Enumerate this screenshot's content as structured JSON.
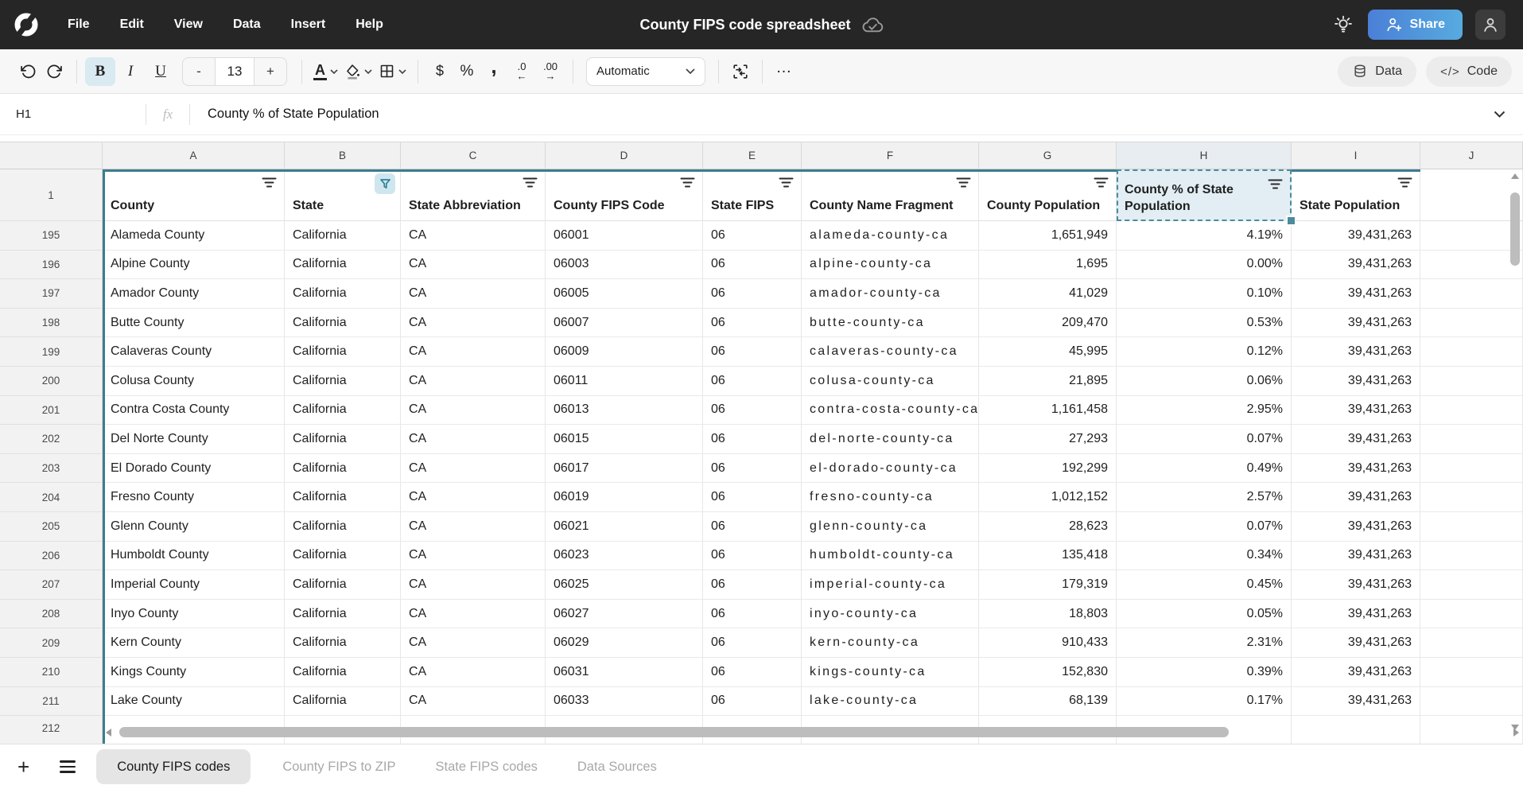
{
  "topbar": {
    "menus": [
      "File",
      "Edit",
      "View",
      "Data",
      "Insert",
      "Help"
    ],
    "title": "County FIPS code spreadsheet",
    "share_label": "Share"
  },
  "toolbar": {
    "bold": "B",
    "italic": "I",
    "underline": "U",
    "font_size_decrease": "-",
    "font_size": "13",
    "font_size_increase": "+",
    "text_color_glyph": "A",
    "currency": "$",
    "percent": "%",
    "comma": ",",
    "decrease_decimal": ".0",
    "decrease_decimal_arrow": "←",
    "increase_decimal": ".00",
    "increase_decimal_arrow": "→",
    "format_select_value": "Automatic",
    "more": "…",
    "data_label": "Data",
    "code_glyph": "</>",
    "code_label": "Code"
  },
  "formula_bar": {
    "cell_ref": "H1",
    "fx_label": "fx",
    "value": "County % of State Population"
  },
  "sheet": {
    "col_letters": [
      "A",
      "B",
      "C",
      "D",
      "E",
      "F",
      "G",
      "H",
      "I",
      "J"
    ],
    "selected_column": "H",
    "header_row_number": "1",
    "headers": [
      {
        "col": "A",
        "label": "County",
        "filter": "lines"
      },
      {
        "col": "B",
        "label": "State",
        "filter": "funnel"
      },
      {
        "col": "C",
        "label": "State Abbreviation",
        "filter": "lines"
      },
      {
        "col": "D",
        "label": "County FIPS Code",
        "filter": "lines"
      },
      {
        "col": "E",
        "label": "State FIPS",
        "filter": "lines"
      },
      {
        "col": "F",
        "label": "County Name Fragment",
        "filter": "lines"
      },
      {
        "col": "G",
        "label": "County Population",
        "filter": "lines"
      },
      {
        "col": "H",
        "label": "County % of State Population",
        "filter": "lines",
        "selected": true
      },
      {
        "col": "I",
        "label": "State Population",
        "filter": "lines"
      }
    ],
    "rows": [
      {
        "n": "195",
        "county": "Alameda County",
        "state": "California",
        "abbr": "CA",
        "fips": "06001",
        "state_fips": "06",
        "fragment": "alameda-county-ca",
        "population": "1,651,949",
        "pct": "4.19%",
        "state_population": "39,431,263"
      },
      {
        "n": "196",
        "county": "Alpine County",
        "state": "California",
        "abbr": "CA",
        "fips": "06003",
        "state_fips": "06",
        "fragment": "alpine-county-ca",
        "population": "1,695",
        "pct": "0.00%",
        "state_population": "39,431,263"
      },
      {
        "n": "197",
        "county": "Amador County",
        "state": "California",
        "abbr": "CA",
        "fips": "06005",
        "state_fips": "06",
        "fragment": "amador-county-ca",
        "population": "41,029",
        "pct": "0.10%",
        "state_population": "39,431,263"
      },
      {
        "n": "198",
        "county": "Butte County",
        "state": "California",
        "abbr": "CA",
        "fips": "06007",
        "state_fips": "06",
        "fragment": "butte-county-ca",
        "population": "209,470",
        "pct": "0.53%",
        "state_population": "39,431,263"
      },
      {
        "n": "199",
        "county": "Calaveras County",
        "state": "California",
        "abbr": "CA",
        "fips": "06009",
        "state_fips": "06",
        "fragment": "calaveras-county-ca",
        "population": "45,995",
        "pct": "0.12%",
        "state_population": "39,431,263"
      },
      {
        "n": "200",
        "county": "Colusa County",
        "state": "California",
        "abbr": "CA",
        "fips": "06011",
        "state_fips": "06",
        "fragment": "colusa-county-ca",
        "population": "21,895",
        "pct": "0.06%",
        "state_population": "39,431,263"
      },
      {
        "n": "201",
        "county": "Contra Costa County",
        "state": "California",
        "abbr": "CA",
        "fips": "06013",
        "state_fips": "06",
        "fragment": "contra-costa-county-ca",
        "population": "1,161,458",
        "pct": "2.95%",
        "state_population": "39,431,263"
      },
      {
        "n": "202",
        "county": "Del Norte County",
        "state": "California",
        "abbr": "CA",
        "fips": "06015",
        "state_fips": "06",
        "fragment": "del-norte-county-ca",
        "population": "27,293",
        "pct": "0.07%",
        "state_population": "39,431,263"
      },
      {
        "n": "203",
        "county": "El Dorado County",
        "state": "California",
        "abbr": "CA",
        "fips": "06017",
        "state_fips": "06",
        "fragment": "el-dorado-county-ca",
        "population": "192,299",
        "pct": "0.49%",
        "state_population": "39,431,263"
      },
      {
        "n": "204",
        "county": "Fresno County",
        "state": "California",
        "abbr": "CA",
        "fips": "06019",
        "state_fips": "06",
        "fragment": "fresno-county-ca",
        "population": "1,012,152",
        "pct": "2.57%",
        "state_population": "39,431,263"
      },
      {
        "n": "205",
        "county": "Glenn County",
        "state": "California",
        "abbr": "CA",
        "fips": "06021",
        "state_fips": "06",
        "fragment": "glenn-county-ca",
        "population": "28,623",
        "pct": "0.07%",
        "state_population": "39,431,263"
      },
      {
        "n": "206",
        "county": "Humboldt County",
        "state": "California",
        "abbr": "CA",
        "fips": "06023",
        "state_fips": "06",
        "fragment": "humboldt-county-ca",
        "population": "135,418",
        "pct": "0.34%",
        "state_population": "39,431,263"
      },
      {
        "n": "207",
        "county": "Imperial County",
        "state": "California",
        "abbr": "CA",
        "fips": "06025",
        "state_fips": "06",
        "fragment": "imperial-county-ca",
        "population": "179,319",
        "pct": "0.45%",
        "state_population": "39,431,263"
      },
      {
        "n": "208",
        "county": "Inyo County",
        "state": "California",
        "abbr": "CA",
        "fips": "06027",
        "state_fips": "06",
        "fragment": "inyo-county-ca",
        "population": "18,803",
        "pct": "0.05%",
        "state_population": "39,431,263"
      },
      {
        "n": "209",
        "county": "Kern County",
        "state": "California",
        "abbr": "CA",
        "fips": "06029",
        "state_fips": "06",
        "fragment": "kern-county-ca",
        "population": "910,433",
        "pct": "2.31%",
        "state_population": "39,431,263"
      },
      {
        "n": "210",
        "county": "Kings County",
        "state": "California",
        "abbr": "CA",
        "fips": "06031",
        "state_fips": "06",
        "fragment": "kings-county-ca",
        "population": "152,830",
        "pct": "0.39%",
        "state_population": "39,431,263"
      },
      {
        "n": "211",
        "county": "Lake County",
        "state": "California",
        "abbr": "CA",
        "fips": "06033",
        "state_fips": "06",
        "fragment": "lake-county-ca",
        "population": "68,139",
        "pct": "0.17%",
        "state_population": "39,431,263"
      }
    ],
    "partial_row_number": "212"
  },
  "tabbar": {
    "add_label": "+",
    "tabs": [
      {
        "label": "County FIPS codes",
        "active": true
      },
      {
        "label": "County FIPS to ZIP",
        "active": false
      },
      {
        "label": "State FIPS codes",
        "active": false
      },
      {
        "label": "Data Sources",
        "active": false
      }
    ]
  },
  "colors": {
    "topbar_bg": "#262626",
    "accent_teal": "#3b7d90",
    "selection_bg": "#e2eef3",
    "bold_active_bg": "#d9eaf0",
    "share_gradient_start": "#4b7fd7",
    "share_gradient_end": "#57abdf",
    "active_tab_bg": "#e5e5e5"
  }
}
